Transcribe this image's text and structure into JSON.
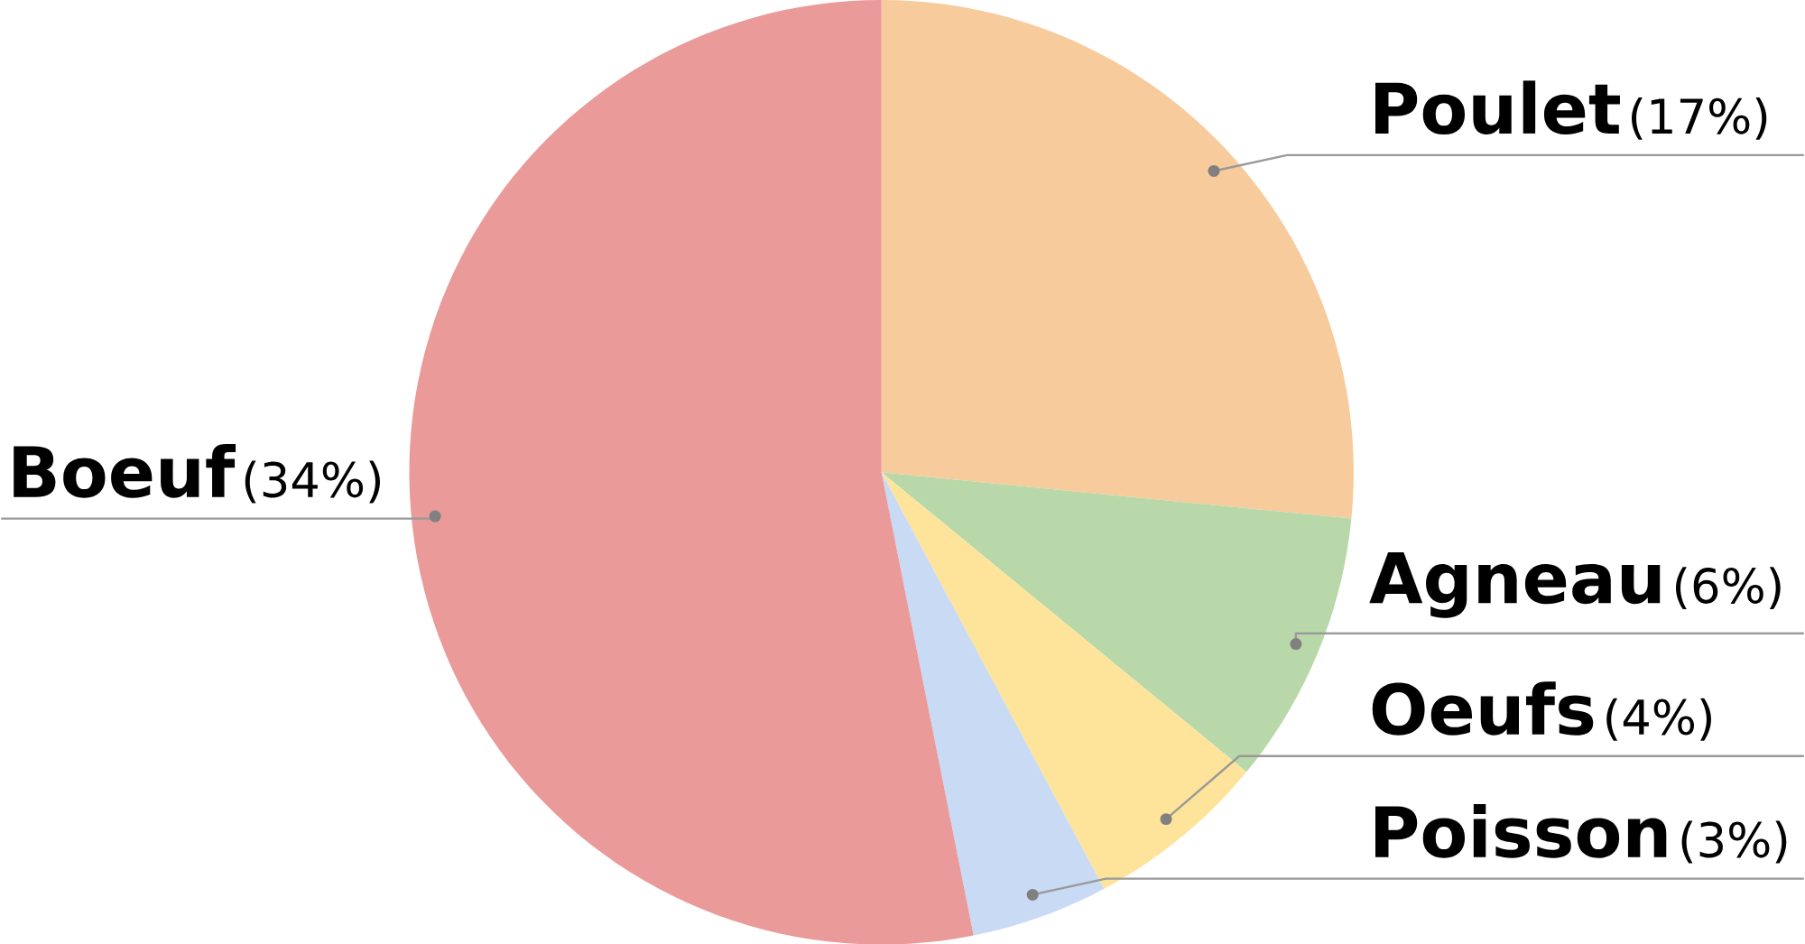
{
  "chart_data": {
    "type": "pie",
    "categories": [
      "Poulet",
      "Agneau",
      "Oeufs",
      "Poisson",
      "Boeuf"
    ],
    "values": [
      17,
      6,
      4,
      3,
      34
    ],
    "value_labels": [
      "(17%)",
      "(6%)",
      "(4%)",
      "(3%)",
      "(34%)"
    ],
    "colors": [
      "#f7cb9c",
      "#b9d8aa",
      "#fde49a",
      "#c9daf4",
      "#e99a99"
    ]
  }
}
